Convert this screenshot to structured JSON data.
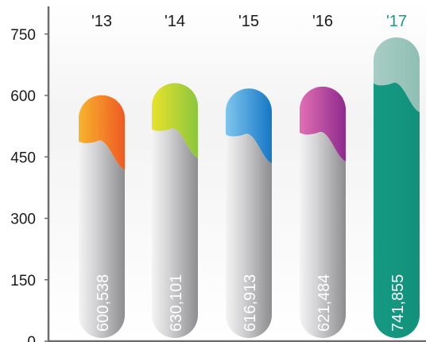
{
  "chart_data": {
    "type": "bar",
    "categories": [
      "'13",
      "'14",
      "'15",
      "'16",
      "'17"
    ],
    "values": [
      600538,
      630101,
      616913,
      621484,
      741855
    ],
    "value_labels": [
      "600,538",
      "630,101",
      "616,913",
      "621,484",
      "741,855"
    ],
    "yticks": [
      "0",
      "150",
      "300",
      "450",
      "600",
      "750"
    ],
    "ylim": [
      0,
      800
    ],
    "ytick_step": 150,
    "scale_unit": 1000,
    "title": "",
    "xlabel": "",
    "ylabel": "",
    "grid": false,
    "highlight_index": 4,
    "cap_gradients": [
      [
        "#f7b42c",
        "#ee5a24"
      ],
      [
        "#e8e22a",
        "#8cc63f"
      ],
      [
        "#7fc6ee",
        "#1577c6"
      ],
      [
        "#e26fb3",
        "#8e2a8e"
      ],
      [
        "#a8cdc5",
        "#8fbfb3"
      ]
    ],
    "colors": {
      "bar_body": "#a3a3a6",
      "highlight_body": "#159a83",
      "highlight_label": "#159a83",
      "axis": "#6d6d6d"
    }
  }
}
